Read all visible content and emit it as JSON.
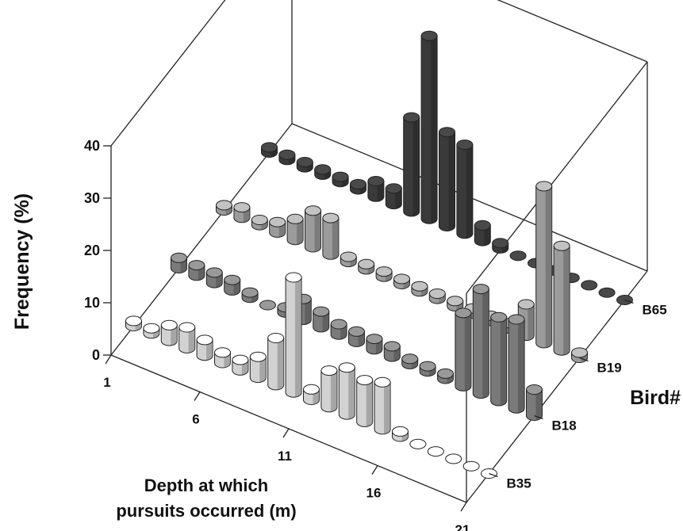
{
  "chart_data": {
    "type": "bar",
    "subtype": "3d-cylinder-bar",
    "title": "",
    "xlabel": "Depth at which pursuits occurred (m)",
    "ylabel": "Bird#",
    "zlabel": "Frequency (%)",
    "x_ticks": [
      "1",
      "6",
      "11",
      "16",
      "21"
    ],
    "y_ticks": [
      "B35",
      "B18",
      "B19",
      "B65"
    ],
    "z_ticks": [
      "0",
      "10",
      "20",
      "30",
      "40"
    ],
    "zlim": [
      0,
      40
    ],
    "grid": false,
    "categories": [
      "1",
      "2",
      "3",
      "4",
      "5",
      "6",
      "7",
      "8",
      "9",
      "10",
      "11",
      "12",
      "13",
      "14",
      "15",
      "16",
      "17",
      "18",
      "19",
      "20",
      "21"
    ],
    "series": [
      {
        "name": "B35",
        "color": "#d2d2d2",
        "values": [
          1,
          1,
          3,
          4,
          3,
          2,
          2,
          4,
          9,
          22,
          2,
          7,
          9,
          8,
          9,
          1,
          0,
          0,
          0,
          0,
          0
        ]
      },
      {
        "name": "B18",
        "color": "#7a7a7a",
        "values": [
          2,
          2,
          2,
          2,
          1,
          0,
          1,
          4,
          3,
          2,
          2,
          2,
          2,
          1,
          1,
          1,
          14,
          20,
          16,
          17,
          5
        ]
      },
      {
        "name": "B19",
        "color": "#9b9b9b",
        "values": [
          1,
          2,
          1,
          2,
          4,
          7,
          7,
          1,
          1,
          1,
          1,
          1,
          1,
          1,
          1,
          1,
          1,
          6,
          30,
          20,
          1
        ]
      },
      {
        "name": "B65",
        "color": "#3a3a3a",
        "values": [
          1,
          1,
          1,
          1,
          1,
          1,
          3,
          3,
          18,
          35,
          18,
          17,
          3,
          1,
          0,
          0,
          0,
          0,
          0,
          0,
          0
        ]
      }
    ]
  }
}
